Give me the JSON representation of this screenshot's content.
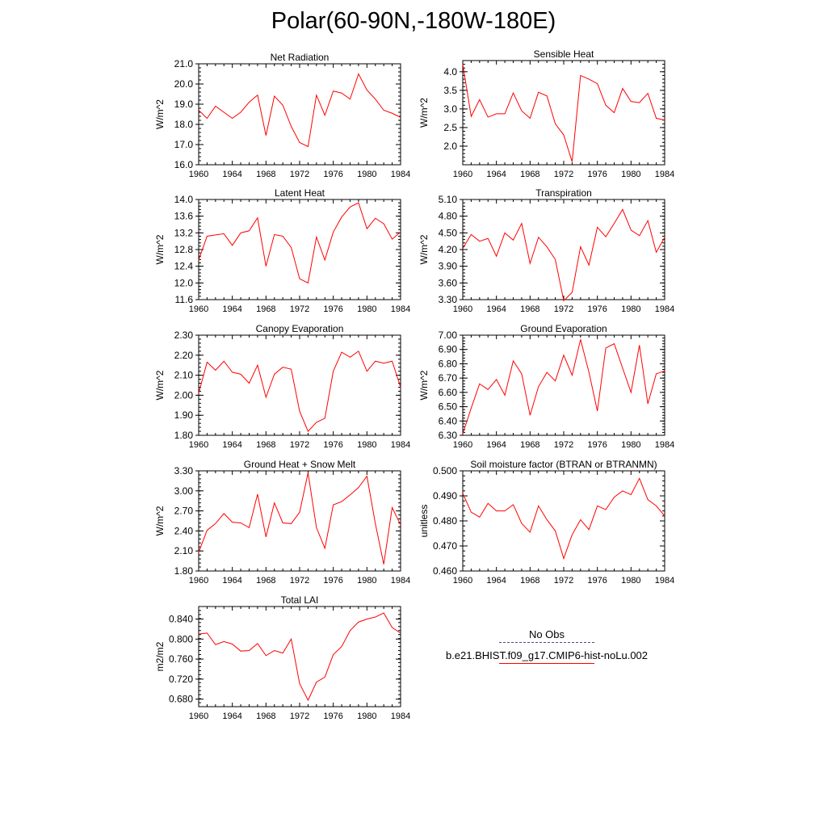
{
  "figure": {
    "title": "Polar(60-90N,-180W-180E)"
  },
  "legend": {
    "entries": [
      {
        "label": "No Obs",
        "style": "dashed",
        "color": "#4a4a9a"
      },
      {
        "label": "b.e21.BHIST.f09_g17.CMIP6-hist-noLu.002",
        "style": "solid",
        "color": "#ff0000"
      }
    ]
  },
  "chart_data": [
    {
      "type": "line",
      "title": "Net Radiation",
      "ylabel": "W/m^2",
      "xlim": [
        1960,
        1984
      ],
      "ylim": [
        16.0,
        21.0
      ],
      "xticks": [
        "1960",
        "1964",
        "1968",
        "1972",
        "1976",
        "1980",
        "1984"
      ],
      "yticks": [
        "16.0",
        "17.0",
        "18.0",
        "19.0",
        "20.0",
        "21.0"
      ],
      "series": [
        {
          "color": "#ff0000",
          "x": [
            1960,
            1961,
            1962,
            1963,
            1964,
            1965,
            1966,
            1967,
            1968,
            1969,
            1970,
            1971,
            1972,
            1973,
            1974,
            1975,
            1976,
            1977,
            1978,
            1979,
            1980,
            1981,
            1982,
            1983,
            1984
          ],
          "values": [
            18.7,
            18.3,
            18.9,
            18.6,
            18.3,
            18.6,
            19.1,
            19.45,
            17.45,
            19.4,
            18.95,
            17.9,
            17.1,
            16.9,
            19.45,
            18.45,
            19.65,
            19.55,
            19.25,
            20.5,
            19.7,
            19.25,
            18.7,
            18.55,
            18.35
          ]
        }
      ]
    },
    {
      "type": "line",
      "title": "Sensible Heat",
      "ylabel": "W/m^2",
      "xlim": [
        1960,
        1984
      ],
      "ylim": [
        1.5,
        4.3
      ],
      "xticks": [
        "1960",
        "1964",
        "1968",
        "1972",
        "1976",
        "1980",
        "1984"
      ],
      "yticks": [
        "2.0",
        "2.5",
        "3.0",
        "3.5",
        "4.0"
      ],
      "series": [
        {
          "color": "#ff0000",
          "x": [
            1960,
            1961,
            1962,
            1963,
            1964,
            1965,
            1966,
            1967,
            1968,
            1969,
            1970,
            1971,
            1972,
            1973,
            1974,
            1975,
            1976,
            1977,
            1978,
            1979,
            1980,
            1981,
            1982,
            1983,
            1984
          ],
          "values": [
            4.2,
            2.8,
            3.25,
            2.78,
            2.87,
            2.87,
            3.43,
            2.95,
            2.75,
            3.45,
            3.35,
            2.6,
            2.3,
            1.58,
            3.9,
            3.8,
            3.68,
            3.1,
            2.9,
            3.55,
            3.2,
            3.17,
            3.42,
            2.75,
            2.7
          ]
        }
      ]
    },
    {
      "type": "line",
      "title": "Latent Heat",
      "ylabel": "W/m^2",
      "xlim": [
        1960,
        1984
      ],
      "ylim": [
        11.6,
        14.0
      ],
      "xticks": [
        "1960",
        "1964",
        "1968",
        "1972",
        "1976",
        "1980",
        "1984"
      ],
      "yticks": [
        "11.6",
        "12.0",
        "12.4",
        "12.8",
        "13.2",
        "13.6",
        "14.0"
      ],
      "series": [
        {
          "color": "#ff0000",
          "x": [
            1960,
            1961,
            1962,
            1963,
            1964,
            1965,
            1966,
            1967,
            1968,
            1969,
            1970,
            1971,
            1972,
            1973,
            1974,
            1975,
            1976,
            1977,
            1978,
            1979,
            1980,
            1981,
            1982,
            1983,
            1984
          ],
          "values": [
            12.55,
            13.12,
            13.15,
            13.18,
            12.9,
            13.2,
            13.25,
            13.56,
            12.4,
            13.16,
            13.12,
            12.85,
            12.1,
            12.0,
            13.1,
            12.55,
            13.22,
            13.58,
            13.82,
            13.92,
            13.3,
            13.55,
            13.42,
            13.05,
            13.22
          ]
        }
      ]
    },
    {
      "type": "line",
      "title": "Transpiration",
      "ylabel": "W/m^2",
      "xlim": [
        1960,
        1984
      ],
      "ylim": [
        3.3,
        5.1
      ],
      "xticks": [
        "1960",
        "1964",
        "1968",
        "1972",
        "1976",
        "1980",
        "1984"
      ],
      "yticks": [
        "3.30",
        "3.60",
        "3.90",
        "4.20",
        "4.50",
        "4.80",
        "5.10"
      ],
      "series": [
        {
          "color": "#ff0000",
          "x": [
            1960,
            1961,
            1962,
            1963,
            1964,
            1965,
            1966,
            1967,
            1968,
            1969,
            1970,
            1971,
            1972,
            1973,
            1974,
            1975,
            1976,
            1977,
            1978,
            1979,
            1980,
            1981,
            1982,
            1983,
            1984
          ],
          "values": [
            4.22,
            4.47,
            4.35,
            4.4,
            4.08,
            4.5,
            4.37,
            4.67,
            3.95,
            4.42,
            4.25,
            4.02,
            3.28,
            3.43,
            4.25,
            3.92,
            4.6,
            4.43,
            4.67,
            4.92,
            4.55,
            4.45,
            4.72,
            4.15,
            4.42
          ]
        }
      ]
    },
    {
      "type": "line",
      "title": "Canopy Evaporation",
      "ylabel": "W/m^2",
      "xlim": [
        1960,
        1984
      ],
      "ylim": [
        1.8,
        2.3
      ],
      "xticks": [
        "1960",
        "1964",
        "1968",
        "1972",
        "1976",
        "1980",
        "1984"
      ],
      "yticks": [
        "1.80",
        "1.90",
        "2.00",
        "2.10",
        "2.20",
        "2.30"
      ],
      "series": [
        {
          "color": "#ff0000",
          "x": [
            1960,
            1961,
            1962,
            1963,
            1964,
            1965,
            1966,
            1967,
            1968,
            1969,
            1970,
            1971,
            1972,
            1973,
            1974,
            1975,
            1976,
            1977,
            1978,
            1979,
            1980,
            1981,
            1982,
            1983,
            1984
          ],
          "values": [
            2.01,
            2.165,
            2.125,
            2.17,
            2.115,
            2.105,
            2.06,
            2.15,
            1.99,
            2.105,
            2.14,
            2.13,
            1.92,
            1.82,
            1.865,
            1.885,
            2.12,
            2.215,
            2.19,
            2.22,
            2.12,
            2.17,
            2.16,
            2.17,
            2.04
          ]
        }
      ]
    },
    {
      "type": "line",
      "title": "Ground Evaporation",
      "ylabel": "W/m^2",
      "xlim": [
        1960,
        1984
      ],
      "ylim": [
        6.3,
        7.0
      ],
      "xticks": [
        "1960",
        "1964",
        "1968",
        "1972",
        "1976",
        "1980",
        "1984"
      ],
      "yticks": [
        "6.30",
        "6.40",
        "6.50",
        "6.60",
        "6.70",
        "6.80",
        "6.90",
        "7.00"
      ],
      "series": [
        {
          "color": "#ff0000",
          "x": [
            1960,
            1961,
            1962,
            1963,
            1964,
            1965,
            1966,
            1967,
            1968,
            1969,
            1970,
            1971,
            1972,
            1973,
            1974,
            1975,
            1976,
            1977,
            1978,
            1979,
            1980,
            1981,
            1982,
            1983,
            1984
          ],
          "values": [
            6.31,
            6.49,
            6.66,
            6.62,
            6.69,
            6.58,
            6.82,
            6.73,
            6.44,
            6.64,
            6.74,
            6.68,
            6.86,
            6.72,
            6.97,
            6.74,
            6.47,
            6.91,
            6.94,
            6.77,
            6.6,
            6.93,
            6.52,
            6.73,
            6.75
          ]
        }
      ]
    },
    {
      "type": "line",
      "title": "Ground Heat + Snow Melt",
      "ylabel": "W/m^2",
      "xlim": [
        1960,
        1984
      ],
      "ylim": [
        1.8,
        3.3
      ],
      "xticks": [
        "1960",
        "1964",
        "1968",
        "1972",
        "1976",
        "1980",
        "1984"
      ],
      "yticks": [
        "1.80",
        "2.10",
        "2.40",
        "2.70",
        "3.00",
        "3.30"
      ],
      "series": [
        {
          "color": "#ff0000",
          "x": [
            1960,
            1961,
            1962,
            1963,
            1964,
            1965,
            1966,
            1967,
            1968,
            1969,
            1970,
            1971,
            1972,
            1973,
            1974,
            1975,
            1976,
            1977,
            1978,
            1979,
            1980,
            1981,
            1982,
            1983,
            1984
          ],
          "values": [
            2.08,
            2.41,
            2.51,
            2.66,
            2.53,
            2.52,
            2.45,
            2.95,
            2.31,
            2.82,
            2.52,
            2.51,
            2.68,
            3.27,
            2.45,
            2.14,
            2.79,
            2.84,
            2.94,
            3.05,
            3.22,
            2.51,
            1.9,
            2.75,
            2.49
          ]
        }
      ]
    },
    {
      "type": "line",
      "title": "Soil moisture factor (BTRAN or BTRANMN)",
      "ylabel": "unitless",
      "xlim": [
        1960,
        1984
      ],
      "ylim": [
        0.46,
        0.5
      ],
      "xticks": [
        "1960",
        "1964",
        "1968",
        "1972",
        "1976",
        "1980",
        "1984"
      ],
      "yticks": [
        "0.460",
        "0.470",
        "0.480",
        "0.490",
        "0.500"
      ],
      "series": [
        {
          "color": "#ff0000",
          "x": [
            1960,
            1961,
            1962,
            1963,
            1964,
            1965,
            1966,
            1967,
            1968,
            1969,
            1970,
            1971,
            1972,
            1973,
            1974,
            1975,
            1976,
            1977,
            1978,
            1979,
            1980,
            1981,
            1982,
            1983,
            1984
          ],
          "values": [
            0.491,
            0.4835,
            0.4815,
            0.487,
            0.484,
            0.484,
            0.4865,
            0.479,
            0.4755,
            0.486,
            0.4805,
            0.476,
            0.465,
            0.4745,
            0.4805,
            0.4765,
            0.486,
            0.4845,
            0.4895,
            0.492,
            0.4905,
            0.497,
            0.4885,
            0.486,
            0.482
          ]
        }
      ]
    },
    {
      "type": "line",
      "title": "Total LAI",
      "ylabel": "m2/m2",
      "xlim": [
        1960,
        1984
      ],
      "ylim": [
        0.665,
        0.865
      ],
      "xticks": [
        "1960",
        "1964",
        "1968",
        "1972",
        "1976",
        "1980",
        "1984"
      ],
      "yticks": [
        "0.680",
        "0.720",
        "0.760",
        "0.800",
        "0.840"
      ],
      "series": [
        {
          "color": "#ff0000",
          "x": [
            1960,
            1961,
            1962,
            1963,
            1964,
            1965,
            1966,
            1967,
            1968,
            1969,
            1970,
            1971,
            1972,
            1973,
            1974,
            1975,
            1976,
            1977,
            1978,
            1979,
            1980,
            1981,
            1982,
            1983,
            1984
          ],
          "values": [
            0.81,
            0.812,
            0.789,
            0.795,
            0.79,
            0.776,
            0.777,
            0.791,
            0.767,
            0.777,
            0.772,
            0.8,
            0.711,
            0.678,
            0.714,
            0.724,
            0.769,
            0.785,
            0.817,
            0.834,
            0.84,
            0.844,
            0.852,
            0.823,
            0.812
          ]
        }
      ]
    }
  ]
}
